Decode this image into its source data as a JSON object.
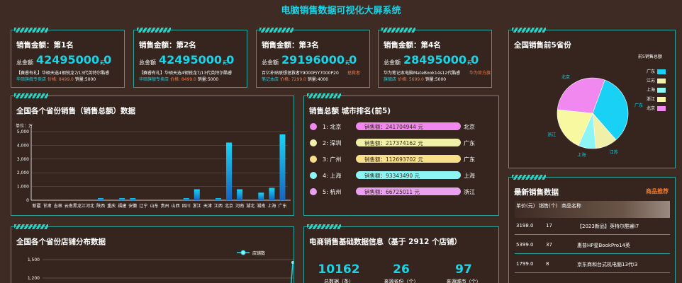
{
  "title": "电脑销售数据可视化大屏系统",
  "top_cards": [
    {
      "title": "销售金额：第1名",
      "amount_label": "总金额",
      "amount": "42495000.0",
      "unit": "元",
      "desc": "【赛睿有礼】华硕天选4钢锐龙7/13代英特尔酷睿",
      "price": "华硕旗舰专卖店",
      "sub": "价格: 8499.0",
      "sales": "销量:5000",
      "shop": ""
    },
    {
      "title": "销售金额：第2名",
      "amount_label": "总金额",
      "amount": "42495000.0",
      "unit": "元",
      "desc": "【赛睿有礼】华硕天选4钢锐龙7/13代英特尔酷睿",
      "price": "华硕旗舰专卖店",
      "sub": "价格: 8499.0",
      "sales": "销量:5000",
      "shop": ""
    },
    {
      "title": "销售金额：第3名",
      "amount_label": "总金额",
      "amount": "29196000.0",
      "unit": "元",
      "desc": "百亿补贴联想拯救者Y9000P/Y7000P20",
      "price": "笔记本店",
      "sub": "价格: 7299.0",
      "sales": "销量:4000",
      "shop": "拯救者"
    },
    {
      "title": "销售金额：第4名",
      "amount_label": "总金额",
      "amount": "28495000.0",
      "unit": "元",
      "desc": "华为笔记本电脑MateBook14s12代酷睿",
      "price": "旗舰店",
      "sub": "价格: 5699.0",
      "sales": "销量:5000",
      "shop": "华为官方旗"
    }
  ],
  "province_sales": {
    "title": "全国各个省份销售（销售总额）数据",
    "unit": "单位：万"
  },
  "chart_data": [
    {
      "type": "bar",
      "title": "全国各个省份销售（销售总额）数据",
      "ylabel": "单位：万",
      "ylim": [
        0,
        5000
      ],
      "yticks": [
        "0",
        "1,000",
        "2,000",
        "3,000",
        "4,000",
        "5,000"
      ],
      "categories": [
        "新疆",
        "甘肃",
        "吉林",
        "云南",
        "黑龙江",
        "河北",
        "陕西",
        "重庆",
        "福建",
        "安徽",
        "辽宁",
        "山东",
        "贵州",
        "山西",
        "四川",
        "浙江",
        "天津",
        "江西",
        "北京",
        "河南",
        "湖北",
        "湖南",
        "上海",
        "广东"
      ],
      "values": [
        0,
        0,
        0,
        0,
        0,
        0,
        150,
        0,
        150,
        150,
        0,
        0,
        0,
        0,
        150,
        800,
        0,
        150,
        4200,
        800,
        0,
        550,
        900,
        4800
      ]
    },
    {
      "type": "pie",
      "title": "全国销售前5省份",
      "legend_title": "前5销售总额",
      "categories": [
        "广东",
        "江苏",
        "上海",
        "浙江",
        "北京"
      ],
      "values": [
        33,
        10,
        8,
        20,
        29
      ],
      "colors": [
        "#19d0f5",
        "#f0f0a8",
        "#8ef5f5",
        "#f8f8a0",
        "#f088f0"
      ]
    },
    {
      "type": "line",
      "title": "全国各个省份店铺分布数据",
      "legend": "店铺数",
      "ylim": [
        0,
        1500
      ],
      "yticks": [
        "1,200",
        "1,500"
      ]
    }
  ],
  "city_rank": {
    "title": "销售总额 城市排名(前5)",
    "items": [
      {
        "rank": "1: 北京",
        "value": "销售额：241704944 元",
        "province": "北京",
        "color": "#f088f0"
      },
      {
        "rank": "2: 深圳",
        "value": "销售额：217374162 元",
        "province": "广东",
        "color": "#f0f0a8"
      },
      {
        "rank": "3: 广州",
        "value": "销售额：112693702 元",
        "province": "广东",
        "color": "#f8e08a"
      },
      {
        "rank": "4: 上海",
        "value": "销售额：93343490 元",
        "province": "上海",
        "color": "#8ef5f5"
      },
      {
        "rank": "5: 杭州",
        "value": "销售额：66725011 元",
        "province": "浙江",
        "color": "#e8a0f0"
      }
    ]
  },
  "top5": {
    "title": "全国销售前5省份",
    "legend_title": "前5销售总额"
  },
  "latest": {
    "title": "最新销售数据",
    "tag": "商品推荐",
    "headers": [
      "单价(元)",
      "销售(个)",
      "商品名称"
    ],
    "rows": [
      {
        "price": "3198.0",
        "qty": "17",
        "name": "【2023新品】英特尔酷睿i7"
      },
      {
        "price": "5399.0",
        "qty": "37",
        "name": "惠普HP星BookPro14英"
      },
      {
        "price": "1799.0",
        "qty": "8",
        "name": "京东商和台式机电脑13代i3"
      }
    ]
  },
  "shops": {
    "title": "全国各个省份店铺分布数据",
    "legend": "店铺数"
  },
  "basic": {
    "title": "电商销售基础数据信息（基于 2912 个店铺）",
    "stats": [
      {
        "num": "10162",
        "label": "总数据（条）"
      },
      {
        "num": "26",
        "label": "来源省份（个）"
      },
      {
        "num": "97",
        "label": "来源城市（个）"
      }
    ]
  }
}
